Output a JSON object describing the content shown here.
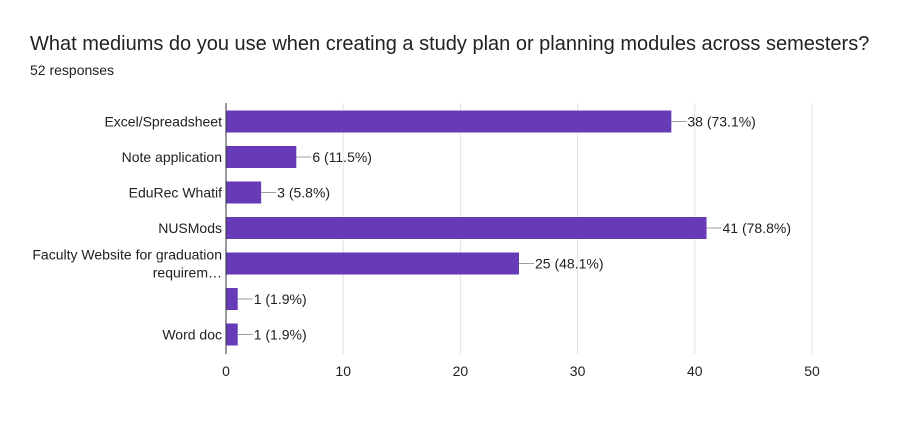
{
  "header": {
    "title": "What mediums do you use when creating a study plan or planning modules across semesters?",
    "subtitle": "52 responses"
  },
  "colors": {
    "bar": "#673ab7",
    "grid": "#e0e0e0",
    "axis": "#333333",
    "leader": "#9e9e9e"
  },
  "chart_data": {
    "type": "bar",
    "orientation": "horizontal",
    "categories": [
      [
        "Excel/Spreadsheet"
      ],
      [
        "Note application"
      ],
      [
        "EduRec Whatif"
      ],
      [
        "NUSMods"
      ],
      [
        "Faculty Website for graduation",
        "requirem…"
      ],
      [
        ""
      ],
      [
        "Word doc"
      ]
    ],
    "values": [
      38,
      6,
      3,
      41,
      25,
      1,
      1
    ],
    "data_labels": [
      "38 (73.1%)",
      "6 (11.5%)",
      "3 (5.8%)",
      "41 (78.8%)",
      "25 (48.1%)",
      "1 (1.9%)",
      "1 (1.9%)"
    ],
    "xlim": [
      0,
      50
    ],
    "x_ticks": [
      0,
      10,
      20,
      30,
      40,
      50
    ],
    "grid": true,
    "legend": "none"
  }
}
